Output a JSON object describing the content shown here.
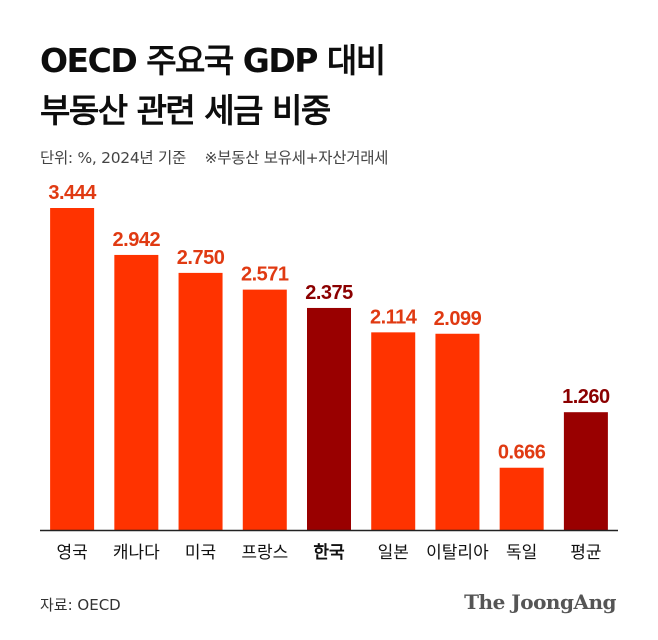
{
  "title_line1": "OECD 주요국 GDP 대비",
  "title_line2": "부동산 관련 세금 비중",
  "unit_note": "단위: %, 2024년 기준",
  "footnote": "※부동산 보유세+자산거래세",
  "source": "자료: OECD",
  "brand": "The JoongAng",
  "colors": {
    "bar": "#ff3300",
    "highlight": "#990000",
    "value_label": "#e03a12",
    "highlight_label": "#8b0000"
  },
  "chart_data": {
    "type": "bar",
    "categories": [
      "영국",
      "캐나다",
      "미국",
      "프랑스",
      "한국",
      "일본",
      "이탈리아",
      "독일",
      "평균"
    ],
    "values": [
      3.444,
      2.942,
      2.75,
      2.571,
      2.375,
      2.114,
      2.099,
      0.666,
      1.26
    ],
    "value_labels": [
      "3.444",
      "2.942",
      "2.750",
      "2.571",
      "2.375",
      "2.114",
      "2.099",
      "0.666",
      "1.260"
    ],
    "highlight": [
      "한국",
      "평균"
    ],
    "ylim": [
      0,
      3.444
    ],
    "grid": false,
    "legend": "none"
  }
}
